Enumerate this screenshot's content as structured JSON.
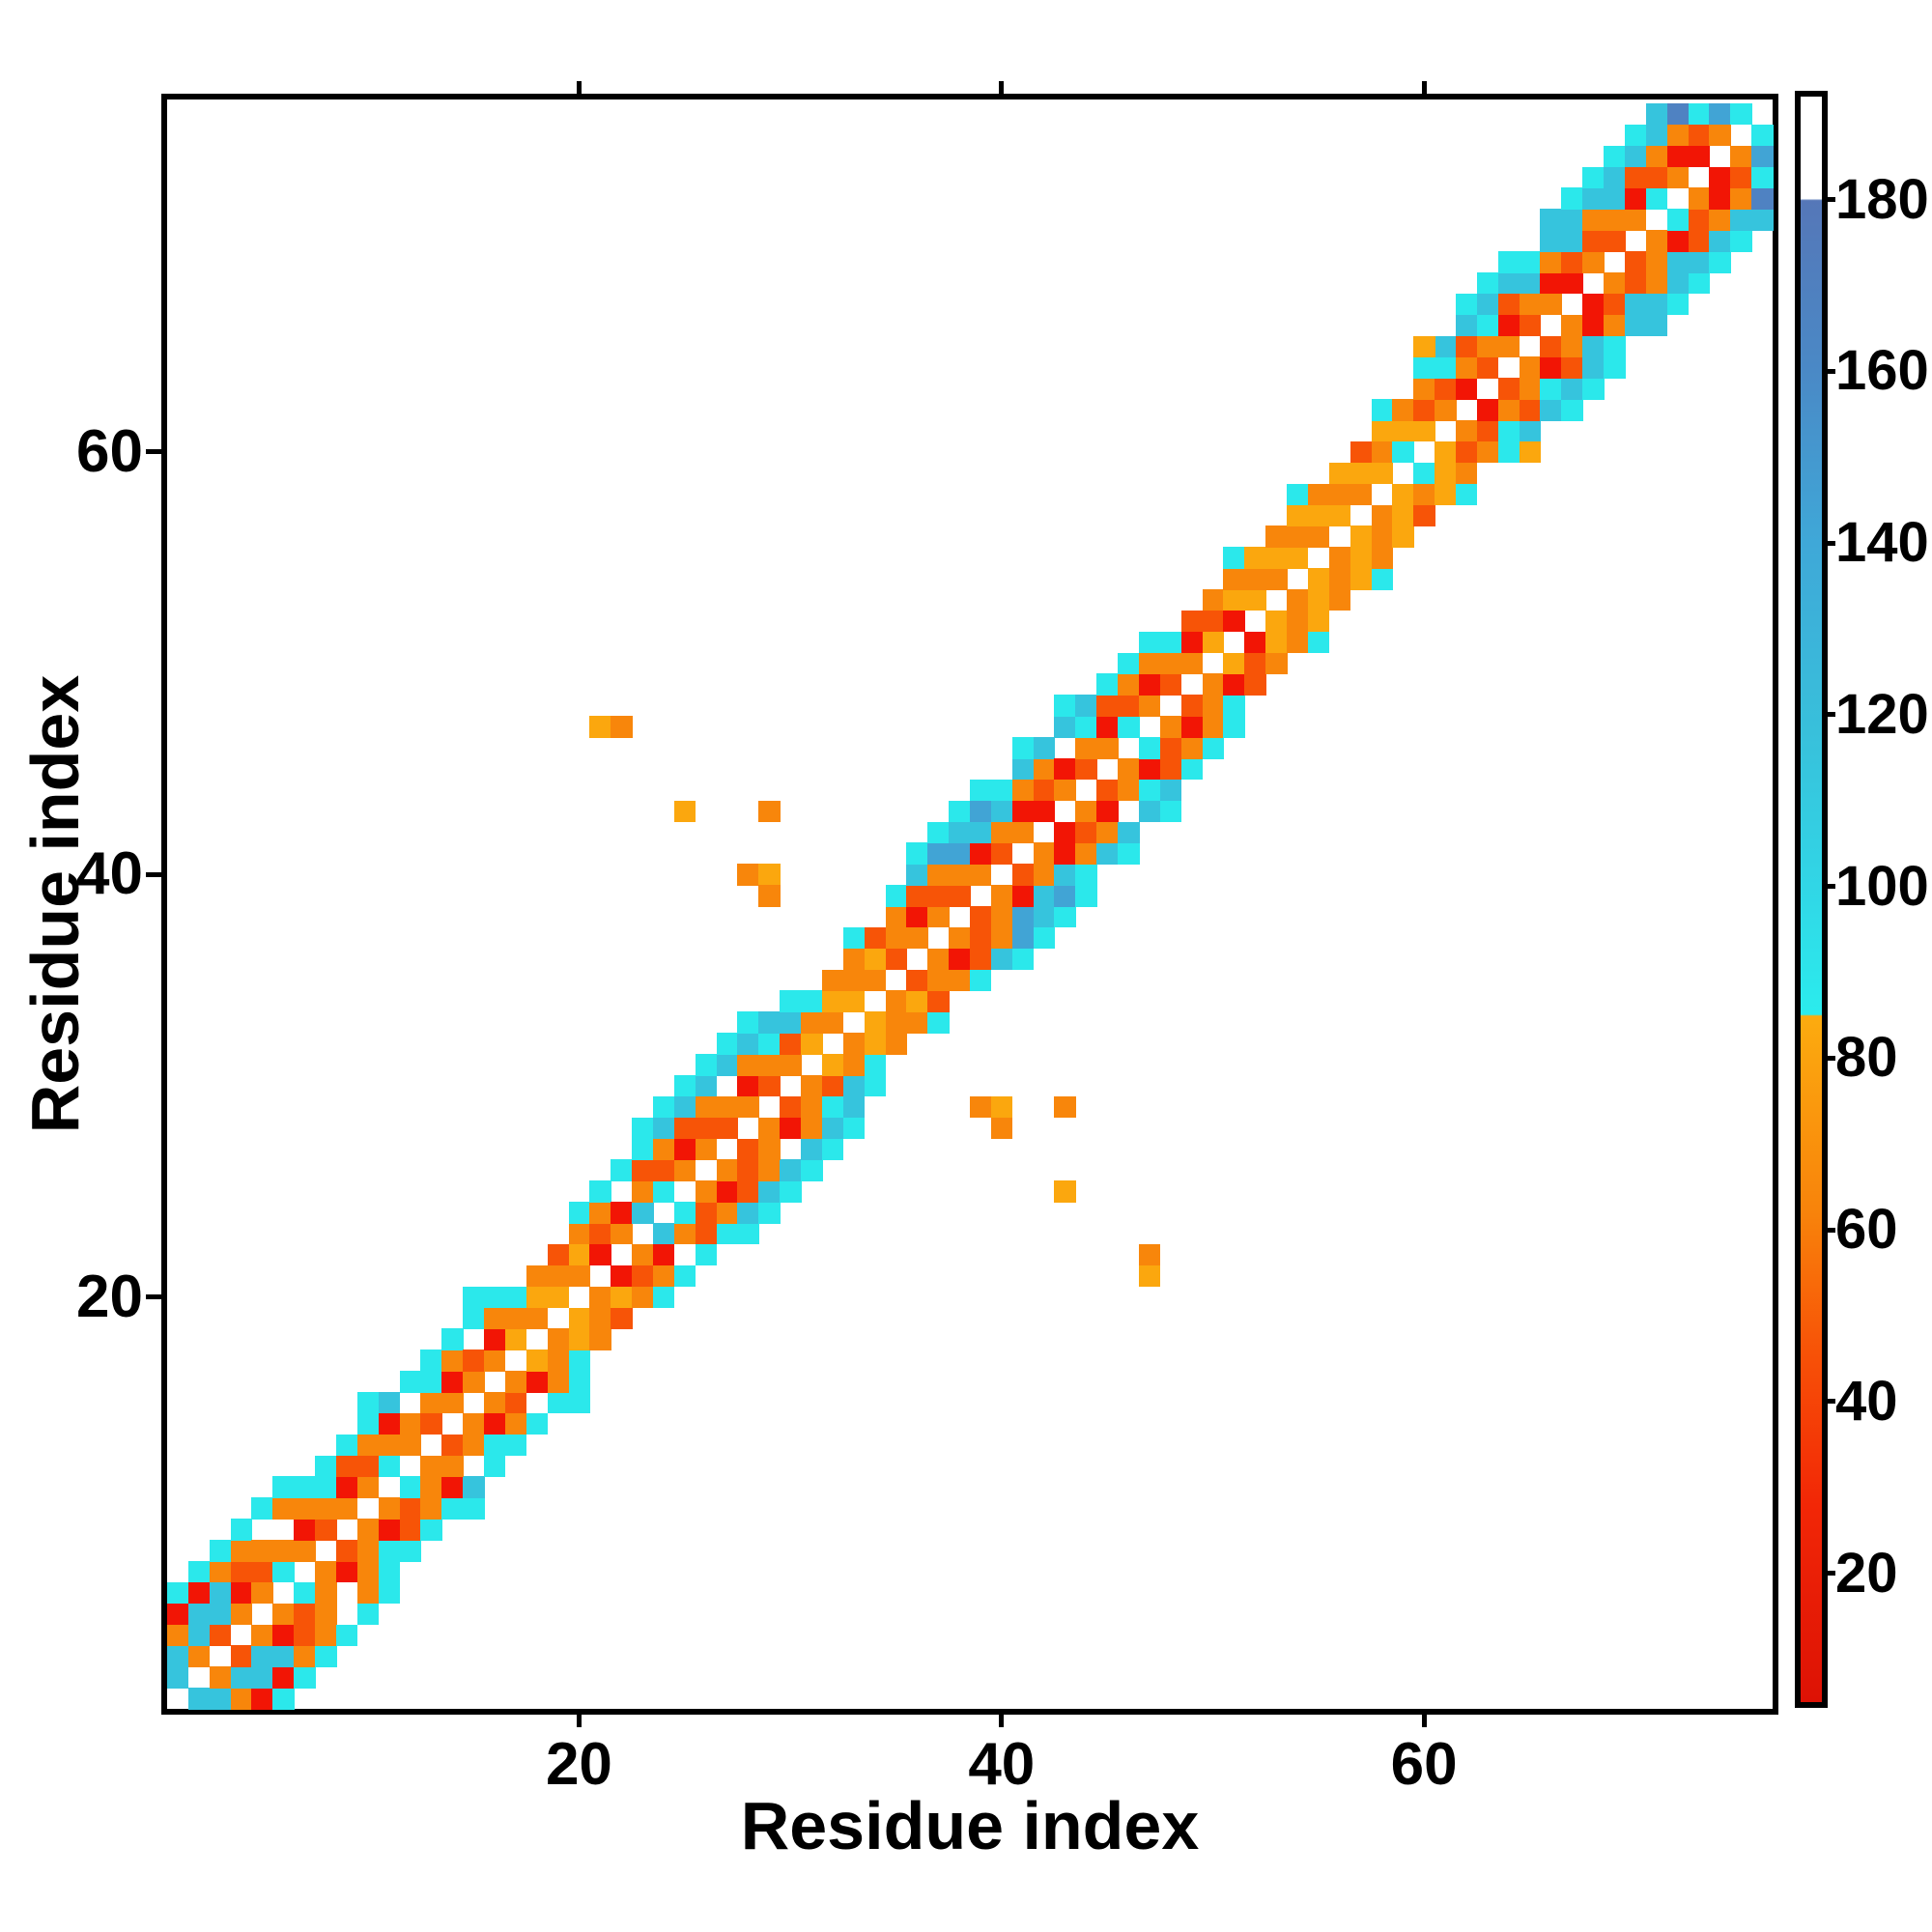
{
  "chart_data": {
    "type": "heatmap",
    "title": "",
    "xlabel": "Residue index",
    "ylabel": "Residue index",
    "n_residues": 76,
    "x_ticks": [
      20,
      40,
      60
    ],
    "y_ticks": [
      20,
      40,
      60
    ],
    "grid": false,
    "diagonal_is_empty": true,
    "symmetric": true,
    "palette": {
      "R": {
        "name": "red",
        "hex": "#f21505",
        "approx_value": 15
      },
      "r": {
        "name": "orange-red",
        "hex": "#f75407",
        "approx_value": 48
      },
      "O": {
        "name": "orange",
        "hex": "#f8860b",
        "approx_value": 64
      },
      "A": {
        "name": "amber",
        "hex": "#fba70e",
        "approx_value": 80
      },
      "C": {
        "name": "cyan",
        "hex": "#2be8eb",
        "approx_value": 90
      },
      "T": {
        "name": "teal",
        "hex": "#36c4dd",
        "approx_value": 112
      },
      "S": {
        "name": "sky-blue",
        "hex": "#41a4d5",
        "approx_value": 140
      },
      "B": {
        "name": "steel-blue",
        "hex": "#4f82c2",
        "approx_value": 170
      }
    },
    "diagonal_bands": {
      "1": "TTORC",
      "2": "OTTRC",
      "3": "rTTOC",
      "4": "ORrOC",
      "5": "OrO.C",
      "6": "CO.OC",
      "7": "OROC",
      "8": "rOCC",
      "9": "ORrC",
      "10": "OrOCC",
      "11": "CORT",
      "12": "OO.C",
      "13": "rOCC",
      "14": "OROC",
      "15": "Or.CC",
      "16": "OROC",
      "17": "AOC",
      "18": "OAO",
      "19": "AOr",
      "20": "OAOC",
      "21": "RrOC",
      "22": "OR.C",
      "23": "TOrCC",
      "24": "CrOTC",
      "25": "ORrTC",
      "26": "OrOTC",
      "27": "rO.TC",
      "28": "OROTC",
      "29": "rOCT",
      "30": "OrTC",
      "31": "AOC",
      "32": "OAO",
      "33": "AOOC",
      "34": "OAr",
      "35": "rOOC",
      "36": "ORrTC",
      "37": "OrOSC",
      "38": "rOSTC",
      "39": "ORTSC",
      "40": "rOTC",
      "41": "OROTC",
      "42": "RrOT",
      "43": "OR.TC",
      "44": "rOCT",
      "45": "ORrC",
      "46": "CrOC",
      "47": "OROC",
      "48": "rOC",
      "49": "ORr",
      "50": "ArO",
      "51": "RAOC",
      "52": "AOA",
      "53": "OAO",
      "54": "AOAC",
      "55": "OAO",
      "56": "AOA",
      "57": "OAr",
      "58": "AOAC",
      "59": "CAO",
      "60": "ArOC",
      "61": "OrCT",
      "62": "ROrTC",
      "63": "rOCTC",
      "64": "ORrTC",
      "65": "rOTC",
      "66": "OROTT",
      "67": "RrTTC",
      "68": "OrOTC",
      "69": "rOTTC",
      "70": "ORrTC",
      "71": "CrOTT",
      "72": "OROB",
      "73": "RrC",
      "74": "OS",
      "75": "C"
    },
    "off_diagonal_contacts": [
      [
        21,
        47,
        "A"
      ],
      [
        22,
        47,
        "O"
      ],
      [
        25,
        43,
        "A"
      ],
      [
        29,
        43,
        "O"
      ],
      [
        28,
        40,
        "O"
      ],
      [
        29,
        40,
        "A"
      ],
      [
        29,
        39,
        "O"
      ],
      [
        60,
        65,
        "A"
      ]
    ],
    "colorbar": {
      "value_min": 5,
      "value_max": 192,
      "ticks": [
        20,
        40,
        60,
        80,
        100,
        120,
        140,
        160,
        180
      ],
      "gradient_stops": [
        [
          5,
          "#dd1205"
        ],
        [
          28,
          "#f22706"
        ],
        [
          45,
          "#f75007"
        ],
        [
          62,
          "#f8830b"
        ],
        [
          84.9,
          "#fcab0f"
        ],
        [
          85.1,
          "#2beced"
        ],
        [
          100,
          "#31d6e6"
        ],
        [
          118,
          "#38c0db"
        ],
        [
          140,
          "#3fa8d8"
        ],
        [
          160,
          "#4a89c6"
        ],
        [
          179.9,
          "#5577b8"
        ],
        [
          180.1,
          "#ffffff"
        ],
        [
          192,
          "#ffffff"
        ]
      ]
    }
  }
}
